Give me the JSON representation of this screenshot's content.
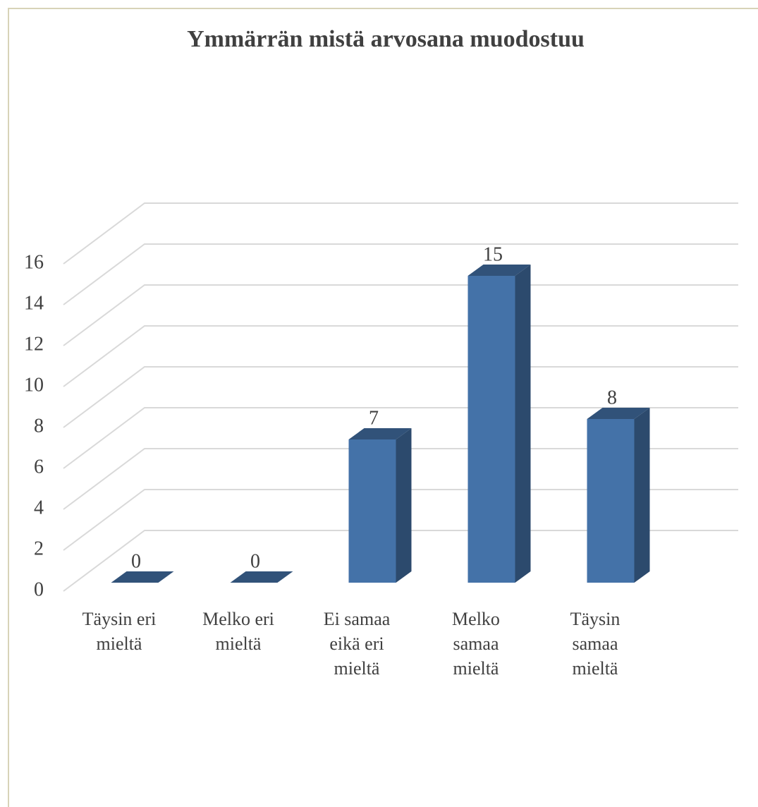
{
  "chart_data": {
    "type": "bar3d",
    "title": "Ymmärrän mistä arvosana muodostuu",
    "categories": [
      "Täysin eri mieltä",
      "Melko eri mieltä",
      "Ei samaa eikä eri mieltä",
      "Melko samaa mieltä",
      "Täysin samaa mieltä"
    ],
    "values": [
      0,
      0,
      7,
      15,
      8
    ],
    "color": "#4472a8",
    "ylim": [
      0,
      16
    ],
    "yticks": [
      0,
      2,
      4,
      6,
      8,
      10,
      12,
      14,
      16
    ],
    "grid": true
  }
}
